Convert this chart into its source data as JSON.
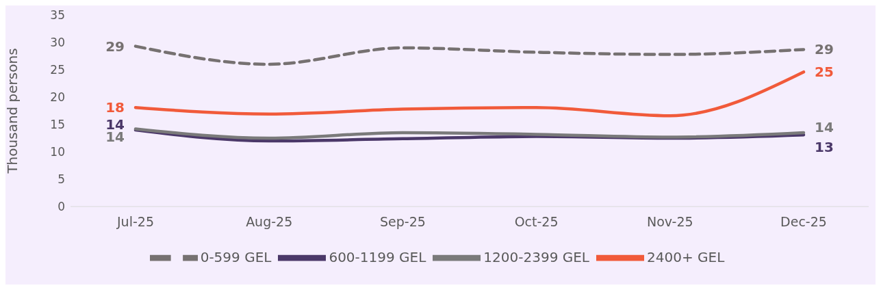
{
  "chart_data": {
    "type": "line",
    "ylabel": "Thousand persons",
    "categories": [
      "Jul-25",
      "Aug-25",
      "Sep-25",
      "Oct-25",
      "Nov-25",
      "Dec-25"
    ],
    "series": [
      {
        "name": "0-599 GEL",
        "color": "#767171",
        "line_style": "dashed",
        "values": [
          29.3,
          26.0,
          29.0,
          28.2,
          27.8,
          28.7
        ],
        "value_labels": [
          "29",
          null,
          null,
          null,
          null,
          "29"
        ]
      },
      {
        "name": "600-1199 GEL",
        "color": "#4b3869",
        "values": [
          14.0,
          12.0,
          12.4,
          12.8,
          12.5,
          13.1
        ],
        "value_labels": [
          "14",
          null,
          null,
          null,
          null,
          "13"
        ]
      },
      {
        "name": "1200-2399 GEL",
        "color": "#7a7a7a",
        "values": [
          14.2,
          12.5,
          13.5,
          13.2,
          12.7,
          13.5
        ],
        "value_labels": [
          "14",
          null,
          null,
          null,
          null,
          "14"
        ]
      },
      {
        "name": "2400+ GEL",
        "color": "#f15a3a",
        "values": [
          18.1,
          16.9,
          17.8,
          18.1,
          16.6,
          24.6
        ],
        "value_labels": [
          "18",
          null,
          null,
          null,
          null,
          "25"
        ]
      }
    ],
    "ylim": [
      0,
      35
    ],
    "yticks": [
      0,
      5,
      10,
      15,
      20,
      25,
      30,
      35
    ],
    "grid": false,
    "legend": "bottom",
    "marker": "none"
  }
}
